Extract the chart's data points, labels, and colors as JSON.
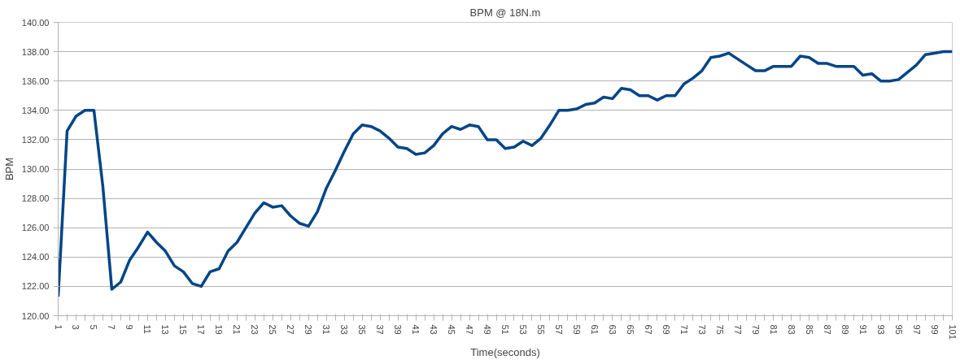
{
  "chart_data": {
    "type": "line",
    "title": "BPM @ 18N.m",
    "xlabel": "Time(seconds)",
    "ylabel": "BPM",
    "categories": [
      "1",
      null,
      "3",
      null,
      "5",
      null,
      "7",
      null,
      "9",
      null,
      "11",
      null,
      "13",
      null,
      "15",
      null,
      "17",
      null,
      "19",
      null,
      "21",
      null,
      "23",
      null,
      "25",
      null,
      "27",
      null,
      "29",
      null,
      "31",
      null,
      "33",
      null,
      "35",
      null,
      "37",
      null,
      "39",
      null,
      "41",
      null,
      "43",
      null,
      "45",
      null,
      "47",
      null,
      "49",
      null,
      "51",
      null,
      "53",
      null,
      "55",
      null,
      "57",
      null,
      "59",
      null,
      "61",
      null,
      "63",
      null,
      "65",
      null,
      "67",
      null,
      "69",
      null,
      "71",
      null,
      "73",
      null,
      "75",
      null,
      "77",
      null,
      "79",
      null,
      "81",
      null,
      "83",
      null,
      "85",
      null,
      "87",
      null,
      "89",
      null,
      "91",
      null,
      "93",
      null,
      "95",
      null,
      "97",
      null,
      "99",
      null,
      "101"
    ],
    "series": [
      {
        "color": "#004586",
        "values": [
          121.3,
          132.6,
          133.6,
          134.0,
          134.0,
          128.8,
          121.8,
          122.3,
          123.8,
          124.7,
          125.7,
          125.0,
          124.4,
          123.4,
          123.0,
          122.2,
          122.0,
          123.0,
          123.2,
          124.4,
          125.0,
          126.0,
          127.0,
          127.7,
          127.4,
          127.5,
          126.8,
          126.3,
          126.1,
          127.1,
          128.7,
          129.9,
          131.2,
          132.4,
          133.0,
          132.9,
          132.6,
          132.1,
          131.5,
          131.4,
          131.0,
          131.1,
          131.6,
          132.4,
          132.9,
          132.7,
          133.0,
          132.9,
          132.0,
          132.0,
          131.4,
          131.5,
          131.9,
          131.6,
          132.1,
          133.0,
          134.0,
          134.0,
          134.1,
          134.4,
          134.5,
          134.9,
          134.8,
          135.5,
          135.4,
          135.0,
          135.0,
          134.7,
          135.0,
          135.0,
          135.8,
          136.2,
          136.7,
          137.6,
          137.7,
          137.9,
          137.5,
          137.1,
          136.7,
          136.7,
          137.0,
          137.0,
          137.0,
          137.7,
          137.6,
          137.2,
          137.2,
          137.0,
          137.0,
          137.0,
          136.4,
          136.5,
          136.0,
          136.0,
          136.1,
          136.6,
          137.1,
          137.8,
          137.9,
          138.0,
          138.0
        ]
      }
    ],
    "ylim": [
      120,
      140
    ],
    "yticks": [
      {
        "value": 120,
        "label": "120.00"
      },
      {
        "value": 122,
        "label": "122.00"
      },
      {
        "value": 124,
        "label": "124.00"
      },
      {
        "value": 126,
        "label": "126.00"
      },
      {
        "value": 128,
        "label": "128.00"
      },
      {
        "value": 130,
        "label": "130.00"
      },
      {
        "value": 132,
        "label": "132.00"
      },
      {
        "value": 134,
        "label": "134.00"
      },
      {
        "value": 136,
        "label": "136.00"
      },
      {
        "value": 138,
        "label": "138.00"
      },
      {
        "value": 140,
        "label": "140.00"
      }
    ],
    "grid": "y",
    "marker": "none",
    "line_style": "solid"
  }
}
